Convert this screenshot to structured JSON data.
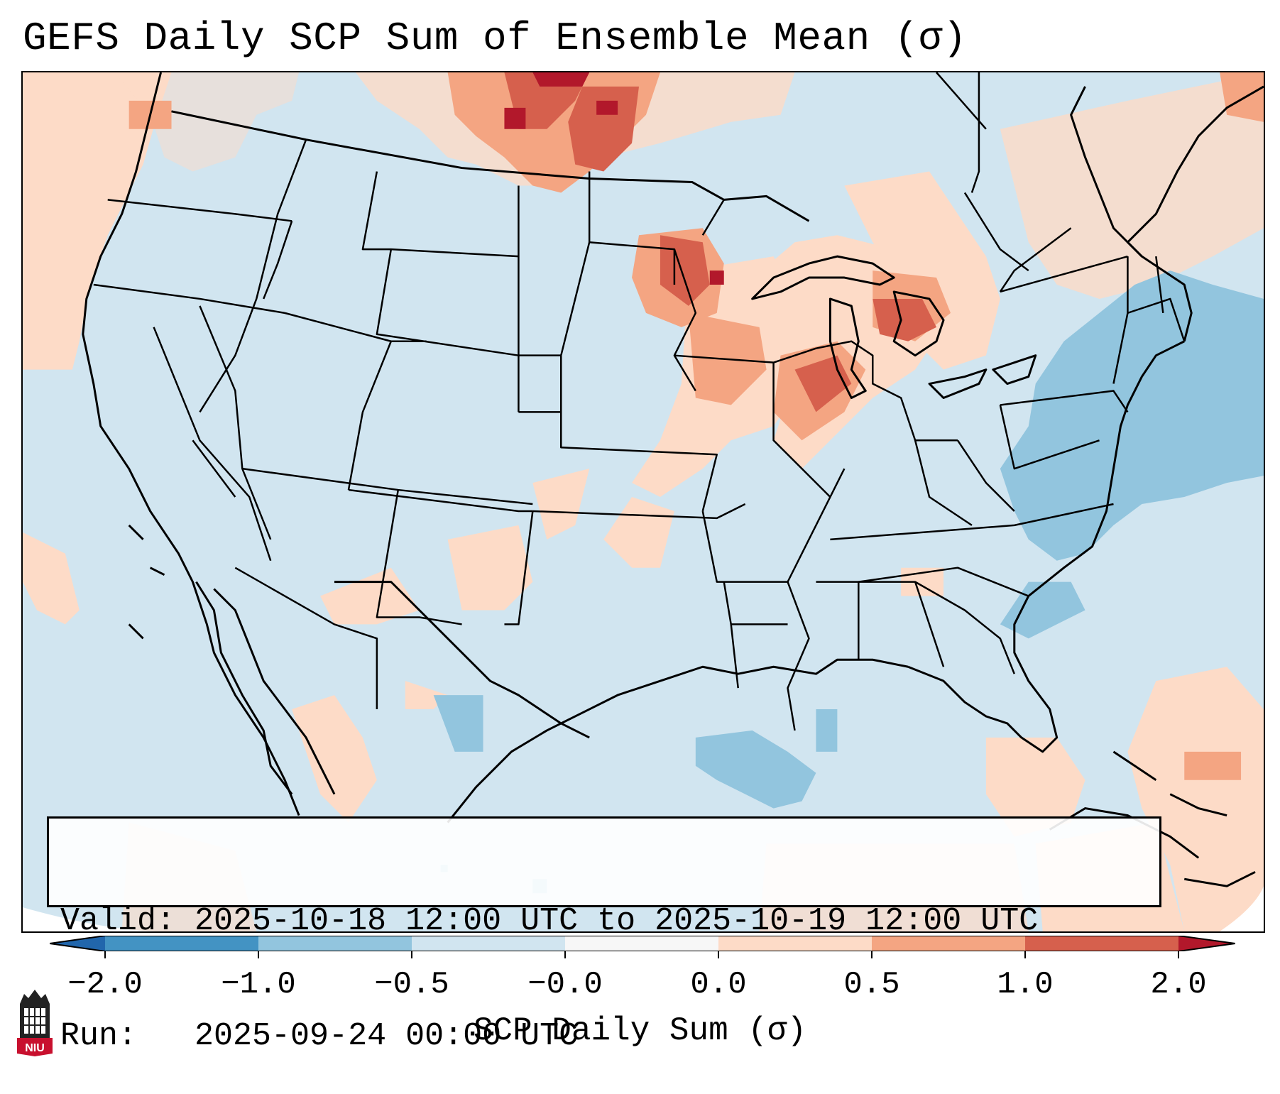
{
  "title": "GEFS Daily SCP Sum of Ensemble Mean (σ)",
  "info": {
    "valid_line": "Valid: 2025-10-18 12:00 UTC to 2025-10-19 12:00 UTC",
    "run_line": "Run:   2025-09-24 00:00 UTC"
  },
  "colorbar": {
    "label": "SCP Daily Sum (σ)",
    "ticks": [
      "−2.0",
      "−1.0",
      "−0.5",
      "−0.0",
      "0.0",
      "0.5",
      "1.0",
      "2.0"
    ],
    "colors": [
      "#4393c3",
      "#92c5de",
      "#d1e5f0",
      "#f7f7f7",
      "#fddbc7",
      "#f4a582",
      "#d6604d",
      "#b2182b"
    ],
    "under_color": "#2166ac",
    "over_color": "#67001f"
  },
  "logo": {
    "text": "NIU",
    "icon": "niu-logo-icon"
  },
  "map": {
    "background_color": "#d1e5f0",
    "field_colors": {
      "light_blue": "#92c5de",
      "light_red": "#fddbc7",
      "mid_red": "#f4a582",
      "red": "#d6604d",
      "dark_red": "#b2182b"
    }
  }
}
